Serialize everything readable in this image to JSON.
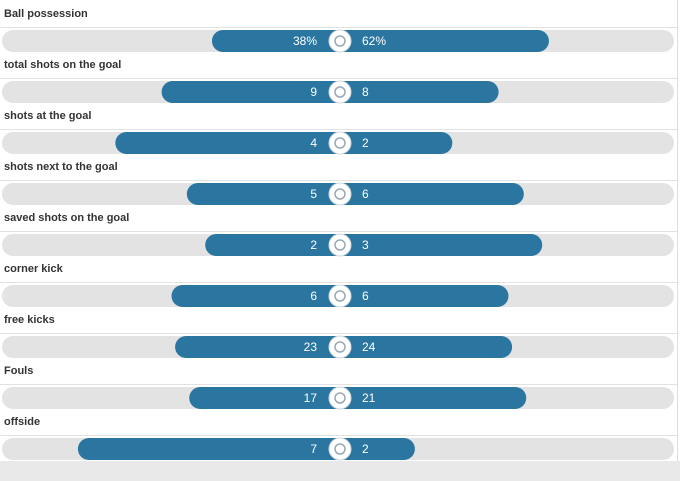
{
  "rows": [
    {
      "label": "Ball possession",
      "home": 38,
      "away": 62,
      "home_label": "38%",
      "away_label": "62%"
    },
    {
      "label": "total shots on the goal",
      "home": 9,
      "away": 8
    },
    {
      "label": "shots at the goal",
      "home": 4,
      "away": 2
    },
    {
      "label": "shots next to the goal",
      "home": 5,
      "away": 6
    },
    {
      "label": "saved shots on the goal",
      "home": 2,
      "away": 3
    },
    {
      "label": "corner kick",
      "home": 6,
      "away": 6
    },
    {
      "label": "free kicks",
      "home": 23,
      "away": 24
    },
    {
      "label": "Fouls",
      "home": 17,
      "away": 21
    },
    {
      "label": "offside",
      "home": 7,
      "away": 2
    }
  ]
}
